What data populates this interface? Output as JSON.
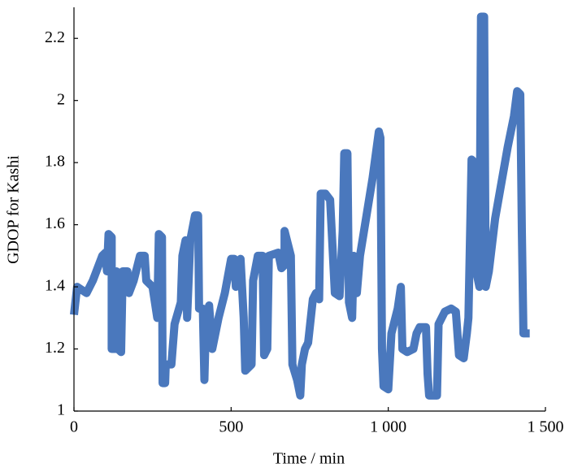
{
  "chart_data": {
    "type": "line",
    "xlabel": "Time / min",
    "ylabel": "GDOP for Kashi",
    "xlim": [
      0,
      1500
    ],
    "ylim": [
      1,
      2.3
    ],
    "xticks": [
      0,
      500,
      {
        "value": 1000,
        "label": "1 000"
      },
      {
        "value": 1500,
        "label": "1 500"
      }
    ],
    "yticks": [
      1,
      1.2,
      1.4,
      1.6,
      1.8,
      2,
      2.2
    ],
    "series": [
      {
        "name": null,
        "color": "#4a78bd",
        "x": [
          0,
          10,
          40,
          60,
          90,
          100,
          105,
          110,
          120,
          120,
          130,
          135,
          140,
          150,
          155,
          170,
          175,
          190,
          210,
          225,
          230,
          250,
          265,
          270,
          280,
          282,
          290,
          292,
          310,
          320,
          340,
          345,
          355,
          360,
          370,
          385,
          395,
          398,
          410,
          415,
          420,
          430,
          440,
          460,
          480,
          500,
          510,
          515,
          530,
          540,
          545,
          565,
          570,
          585,
          600,
          605,
          615,
          620,
          650,
          660,
          670,
          670,
          690,
          695,
          710,
          720,
          725,
          735,
          745,
          760,
          770,
          780,
          785,
          800,
          815,
          830,
          845,
          855,
          860,
          870,
          875,
          885,
          890,
          900,
          910,
          950,
          970,
          975,
          980,
          985,
          1000,
          1010,
          1030,
          1040,
          1045,
          1060,
          1080,
          1090,
          1100,
          1120,
          1125,
          1130,
          1155,
          1160,
          1180,
          1200,
          1215,
          1225,
          1240,
          1250,
          1255,
          1265,
          1275,
          1280,
          1290,
          1295,
          1305,
          1310,
          1320,
          1340,
          1380,
          1400,
          1410,
          1420,
          1425,
          1430,
          1440,
          1450
        ],
        "values": [
          1.31,
          1.4,
          1.38,
          1.42,
          1.5,
          1.51,
          1.45,
          1.57,
          1.56,
          1.2,
          1.2,
          1.45,
          1.2,
          1.19,
          1.45,
          1.45,
          1.38,
          1.42,
          1.5,
          1.5,
          1.42,
          1.4,
          1.3,
          1.57,
          1.56,
          1.09,
          1.09,
          1.15,
          1.15,
          1.28,
          1.35,
          1.5,
          1.55,
          1.3,
          1.55,
          1.63,
          1.63,
          1.33,
          1.33,
          1.1,
          1.3,
          1.34,
          1.2,
          1.3,
          1.38,
          1.49,
          1.49,
          1.4,
          1.49,
          1.3,
          1.13,
          1.15,
          1.42,
          1.5,
          1.5,
          1.18,
          1.2,
          1.5,
          1.51,
          1.46,
          1.47,
          1.58,
          1.5,
          1.15,
          1.1,
          1.05,
          1.15,
          1.2,
          1.22,
          1.36,
          1.38,
          1.36,
          1.7,
          1.7,
          1.68,
          1.38,
          1.37,
          1.58,
          1.83,
          1.83,
          1.35,
          1.3,
          1.5,
          1.38,
          1.5,
          1.75,
          1.9,
          1.88,
          1.2,
          1.08,
          1.07,
          1.25,
          1.33,
          1.4,
          1.2,
          1.19,
          1.2,
          1.25,
          1.27,
          1.27,
          1.12,
          1.05,
          1.05,
          1.28,
          1.32,
          1.33,
          1.32,
          1.18,
          1.17,
          1.25,
          1.3,
          1.81,
          1.8,
          1.45,
          1.4,
          2.27,
          2.27,
          1.4,
          1.45,
          1.62,
          1.85,
          1.95,
          2.03,
          2.02,
          1.58,
          1.25,
          1.25,
          1.25
        ]
      }
    ]
  }
}
